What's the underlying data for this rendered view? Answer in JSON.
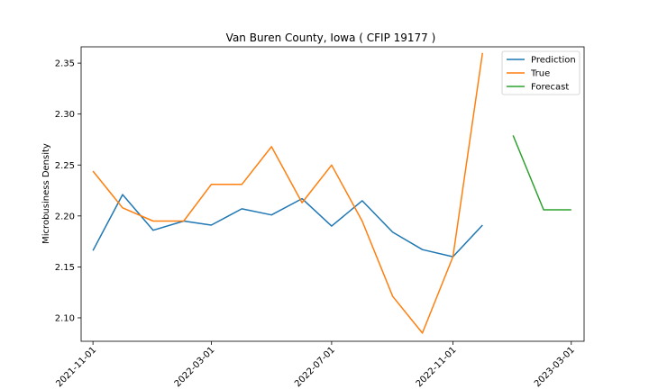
{
  "chart_data": {
    "type": "line",
    "title": "Van Buren County, Iowa ( CFIP 19177 )",
    "xlabel": "",
    "ylabel": "Microbusiness Density",
    "xlim": [
      "2021-10-20",
      "2023-03-14"
    ],
    "ylim": [
      2.077,
      2.366
    ],
    "x_ticks": [
      "2021-11-01",
      "2022-03-01",
      "2022-07-01",
      "2022-11-01",
      "2023-03-01"
    ],
    "y_ticks": [
      2.1,
      2.15,
      2.2,
      2.25,
      2.3,
      2.35
    ],
    "legend": {
      "placement": "top-right"
    },
    "grid": false,
    "series": [
      {
        "name": "Prediction",
        "color": "#1f77b4",
        "x": [
          "2021-11-01",
          "2021-12-01",
          "2022-01-01",
          "2022-02-01",
          "2022-03-01",
          "2022-04-01",
          "2022-05-01",
          "2022-06-01",
          "2022-07-01",
          "2022-08-01",
          "2022-09-01",
          "2022-10-01",
          "2022-11-01",
          "2022-12-01"
        ],
        "values": [
          2.166,
          2.221,
          2.186,
          2.195,
          2.191,
          2.207,
          2.201,
          2.217,
          2.19,
          2.215,
          2.184,
          2.167,
          2.16,
          2.191
        ]
      },
      {
        "name": "True",
        "color": "#ff7f0e",
        "x": [
          "2021-11-01",
          "2021-12-01",
          "2022-01-01",
          "2022-02-01",
          "2022-03-01",
          "2022-04-01",
          "2022-05-01",
          "2022-06-01",
          "2022-07-01",
          "2022-08-01",
          "2022-09-01",
          "2022-10-01",
          "2022-11-01",
          "2022-12-01"
        ],
        "values": [
          2.244,
          2.208,
          2.195,
          2.195,
          2.231,
          2.231,
          2.268,
          2.213,
          2.25,
          2.195,
          2.121,
          2.085,
          2.16,
          2.36
        ]
      },
      {
        "name": "Forecast",
        "color": "#2ca02c",
        "x": [
          "2023-01-01",
          "2023-02-01",
          "2023-03-01"
        ],
        "values": [
          2.279,
          2.206,
          2.206
        ]
      }
    ]
  }
}
